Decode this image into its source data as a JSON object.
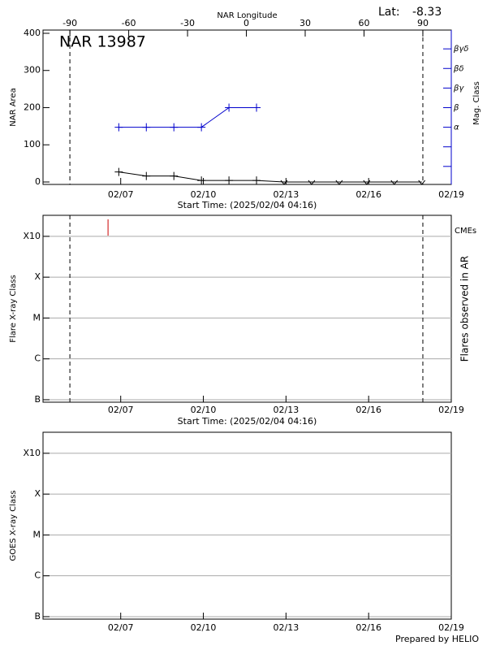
{
  "chart_data": [
    {
      "type": "line",
      "title": "NAR 13987",
      "lat_label": "Lat:",
      "lat": -8.33,
      "x2label": "NAR Longitude",
      "xlabel": "Start Time: (2025/02/04 04:16)",
      "ylabel": "NAR Area",
      "y2label": "Mag. Class",
      "xlim": [
        4.18,
        19
      ],
      "xticks": [
        {
          "value": 7,
          "label": "02/07"
        },
        {
          "value": 10,
          "label": "02/10"
        },
        {
          "value": 13,
          "label": "02/13"
        },
        {
          "value": 16,
          "label": "02/16"
        },
        {
          "value": 19,
          "label": "02/19"
        }
      ],
      "x2lim": [
        -103.7,
        104.5
      ],
      "x2ticks": [
        -90,
        -60,
        -30,
        0,
        30,
        60,
        90
      ],
      "ylim": [
        -6.6,
        408.7
      ],
      "yticks": [
        0,
        100,
        200,
        300,
        400
      ],
      "y2lim": [
        -0.92,
        6.96
      ],
      "y2ticks": [
        0,
        1,
        {
          "value": 2,
          "label": "α"
        },
        {
          "value": 3,
          "label": "β"
        },
        {
          "value": 4,
          "label": "βγ"
        },
        {
          "value": 5,
          "label": "βδ"
        },
        {
          "value": 6,
          "label": "βγδ"
        }
      ],
      "series": [
        {
          "color": "#000000",
          "x": [
            6.93,
            7.93,
            8.93,
            9.93,
            10.93,
            11.93,
            12.93,
            13.93,
            14.93,
            15.93,
            16.93,
            17.93
          ],
          "values": [
            27,
            16,
            16,
            4,
            4,
            4,
            0,
            0,
            0,
            0,
            0,
            0
          ]
        },
        {
          "color": "#0000cc",
          "axis": "y2",
          "x": [
            6.93,
            7.93,
            8.93,
            9.93,
            10.93,
            11.93
          ],
          "values": [
            2,
            2,
            2,
            2,
            3,
            3
          ]
        }
      ]
    },
    {
      "type": "line",
      "xlabel": "Start Time: (2025/02/04 04:16)",
      "ylabel": "Flare X-ray Class",
      "y2label": "Flares observed in AR",
      "log_scale": true,
      "grid": true,
      "xlim": [
        4.18,
        19
      ],
      "xticks": [
        {
          "value": 7,
          "label": "02/07"
        },
        {
          "value": 10,
          "label": "02/10"
        },
        {
          "value": 13,
          "label": "02/13"
        },
        {
          "value": 16,
          "label": "02/16"
        },
        {
          "value": 19,
          "label": "02/19"
        }
      ],
      "ylim": [
        8.7e-08,
        0.00327
      ],
      "yticks": [
        {
          "value": 1e-07,
          "label": "B"
        },
        {
          "value": 1e-06,
          "label": "C"
        },
        {
          "value": 1e-05,
          "label": "M"
        },
        {
          "value": 0.0001,
          "label": "X"
        },
        {
          "value": 0.001,
          "label": "X10"
        }
      ],
      "cmes": {
        "label": "CMEs",
        "color": "#cc0000",
        "x": [
          6.54
        ]
      }
    },
    {
      "type": "line",
      "ylabel": "GOES X-ray Class",
      "footer": "Prepared by HELIO",
      "log_scale": true,
      "grid": true,
      "xlim": [
        4.18,
        19
      ],
      "xticks": [
        {
          "value": 7,
          "label": "02/07"
        },
        {
          "value": 10,
          "label": "02/10"
        },
        {
          "value": 13,
          "label": "02/13"
        },
        {
          "value": 16,
          "label": "02/16"
        },
        {
          "value": 19,
          "label": "02/19"
        }
      ],
      "ylim": [
        8.7e-08,
        0.00327
      ],
      "yticks": [
        {
          "value": 1e-07,
          "label": "B"
        },
        {
          "value": 1e-06,
          "label": "C"
        },
        {
          "value": 1e-05,
          "label": "M"
        },
        {
          "value": 0.0001,
          "label": "X"
        },
        {
          "value": 0.001,
          "label": "X10"
        }
      ]
    }
  ]
}
